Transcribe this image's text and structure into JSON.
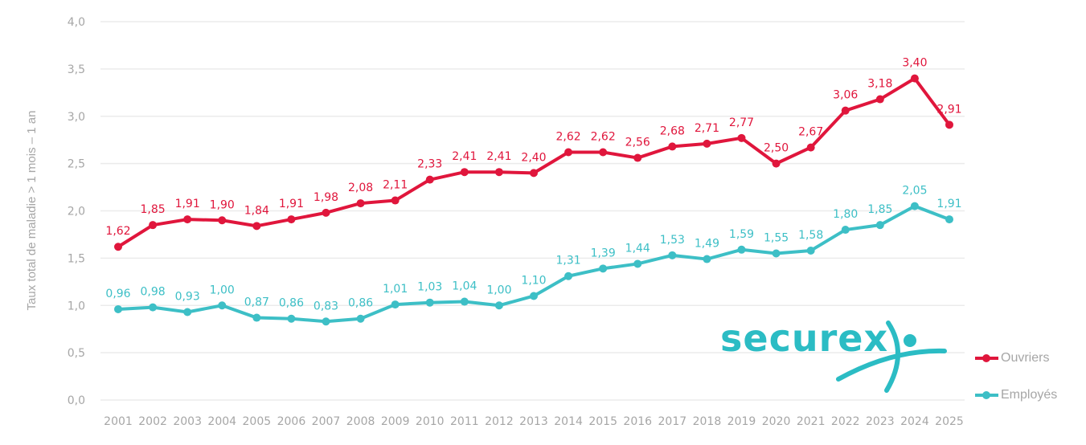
{
  "chart_data": {
    "type": "line",
    "title": "",
    "xlabel": "",
    "ylabel": "Taux total de maladie > 1 mois – 1 an",
    "ylim": [
      0,
      4
    ],
    "yticks": [
      "0,0",
      "0,5",
      "1,0",
      "1,5",
      "2,0",
      "2,5",
      "3,0",
      "3,5",
      "4,0"
    ],
    "grid": true,
    "legend_position": "bottom-right",
    "categories": [
      "2001",
      "2002",
      "2003",
      "2004",
      "2005",
      "2006",
      "2007",
      "2008",
      "2009",
      "2010",
      "2011",
      "2012",
      "2013",
      "2014",
      "2015",
      "2016",
      "2017",
      "2018",
      "2019",
      "2020",
      "2021",
      "2022",
      "2023",
      "2024",
      "2025"
    ],
    "series": [
      {
        "name": "Ouvriers",
        "color": "#e0163c",
        "values": [
          1.62,
          1.85,
          1.91,
          1.9,
          1.84,
          1.91,
          1.98,
          2.08,
          2.11,
          2.33,
          2.41,
          2.41,
          2.4,
          2.62,
          2.62,
          2.56,
          2.68,
          2.71,
          2.77,
          2.5,
          2.67,
          3.06,
          3.18,
          3.4,
          2.91
        ]
      },
      {
        "name": "Employés",
        "color": "#3dbfc6",
        "values": [
          0.96,
          0.98,
          0.93,
          1.0,
          0.87,
          0.86,
          0.83,
          0.86,
          1.01,
          1.03,
          1.04,
          1.0,
          1.1,
          1.31,
          1.39,
          1.44,
          1.53,
          1.49,
          1.59,
          1.55,
          1.58,
          1.8,
          1.85,
          2.05,
          1.91
        ]
      }
    ]
  },
  "logo": {
    "text": "securex",
    "color": "#2bbcc4"
  }
}
